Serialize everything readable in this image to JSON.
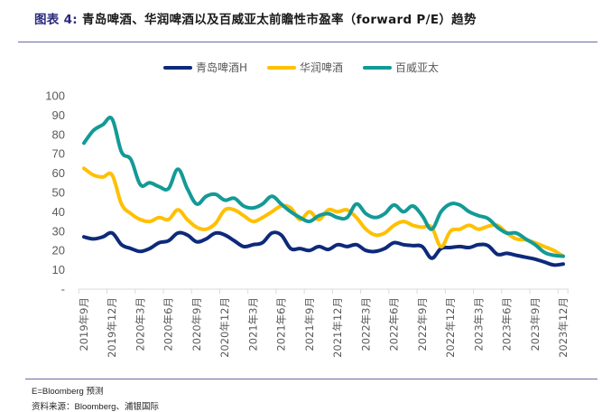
{
  "header": {
    "figure_label": "图表 4:",
    "title": "青岛啤酒、华润啤酒以及百威亚太前瞻性市盈率（forward P/E）趋势"
  },
  "footer": {
    "note": "E=Bloomberg 预测",
    "source": "资料来源：Bloomberg、浦银国际"
  },
  "chart_data": {
    "type": "line",
    "title": "青岛啤酒、华润啤酒以及百威亚太前瞻性市盈率（forward P/E）趋势",
    "xlabel": "",
    "ylabel": "",
    "ylim": [
      0,
      100
    ],
    "yticks": [
      0,
      10,
      20,
      30,
      40,
      50,
      60,
      70,
      80,
      90,
      100
    ],
    "ytick_labels": [
      "-",
      "10",
      "20",
      "30",
      "40",
      "50",
      "60",
      "70",
      "80",
      "90",
      "100"
    ],
    "grid": false,
    "legend_position": "top-center",
    "x_tick_labels": [
      "2019年9月",
      "2019年12月",
      "2020年3月",
      "2020年6月",
      "2020年9月",
      "2020年12月",
      "2021年3月",
      "2021年6月",
      "2021年9月",
      "2021年12月",
      "2022年3月",
      "2022年6月",
      "2022年9月",
      "2022年12月",
      "2023年3月",
      "2023年6月",
      "2023年9月",
      "2023年12月"
    ],
    "x_tick_every_n_months": 3,
    "x_start": "2019-09",
    "x_end": "2023-12",
    "x_frequency": "monthly",
    "series": [
      {
        "name": "青岛啤酒H",
        "color": "#0d2a7a",
        "values": [
          27,
          26,
          27,
          29,
          23,
          21,
          19.5,
          21,
          24,
          25,
          29,
          28,
          24.5,
          26,
          29,
          28,
          25,
          22,
          23,
          24,
          29,
          28,
          21,
          21,
          20,
          22,
          20.5,
          23,
          22,
          23,
          20,
          19.5,
          21,
          24,
          23,
          22.5,
          22,
          16,
          21,
          21.5,
          22,
          21.5,
          23,
          22.5,
          18,
          18.5,
          17.5,
          16.5,
          15.5,
          14,
          12.5,
          13
        ]
      },
      {
        "name": "华润啤酒",
        "color": "#ffc000",
        "values": [
          62.5,
          59,
          58,
          59,
          44,
          39,
          36,
          35,
          37,
          36,
          41,
          36,
          32,
          31,
          34,
          41,
          41,
          38,
          35,
          37,
          40,
          43,
          42,
          36,
          40,
          36,
          41,
          40,
          41,
          37,
          31,
          28,
          29,
          33,
          35,
          33,
          32,
          32,
          22,
          30,
          31,
          33,
          31,
          32.5,
          33,
          29,
          26,
          25.5,
          24,
          22,
          20,
          17
        ]
      },
      {
        "name": "百威亚太",
        "color": "#139a96",
        "values": [
          75.5,
          82,
          85,
          88,
          71,
          67,
          54,
          55,
          53,
          52,
          62,
          52,
          44,
          48,
          49,
          46,
          47,
          43,
          42,
          44,
          48,
          44,
          40,
          37,
          35,
          38,
          39,
          37,
          37,
          44,
          39,
          37,
          39,
          43.5,
          40,
          43,
          38,
          31,
          40,
          44,
          43.5,
          40,
          38,
          36.5,
          32,
          29,
          29,
          26,
          23,
          19,
          17.5,
          17
        ]
      }
    ]
  }
}
